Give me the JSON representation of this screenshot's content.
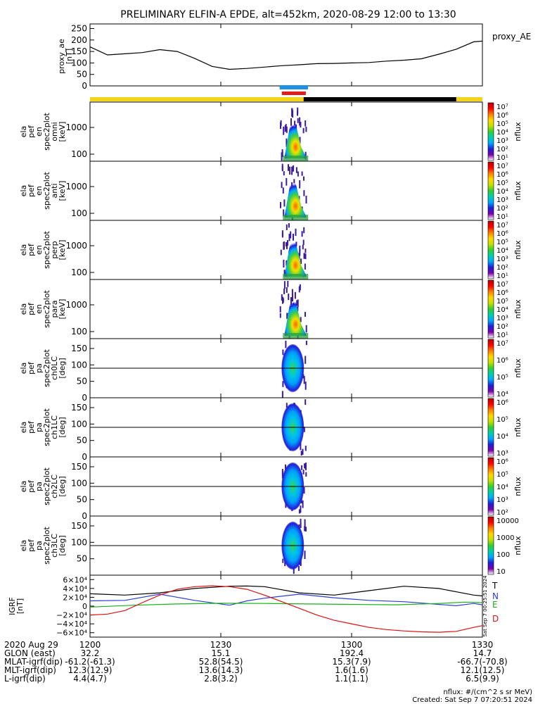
{
  "chart_data": {
    "type": "multi-panel spectrogram",
    "title": "PRELIMINARY ELFIN-A EPDE, alt=452km, 2020-08-29 12:00 to 13:30",
    "ae_panel": {
      "ylabel_lines": [
        "proxy_ae",
        "[nT]"
      ],
      "yticks": [
        "250",
        "200",
        "150",
        "100",
        "50",
        "0"
      ],
      "ytick_values": [
        250,
        200,
        150,
        100,
        50,
        0
      ],
      "ylim": [
        0,
        270
      ],
      "legend": "proxy_AE",
      "x": [
        0,
        4,
        8,
        12,
        16,
        20,
        24,
        28,
        32,
        36,
        40,
        44,
        48,
        52,
        56,
        60,
        64,
        68,
        72,
        76,
        80,
        84,
        88,
        90
      ],
      "values": [
        170,
        135,
        140,
        145,
        158,
        150,
        120,
        85,
        72,
        76,
        82,
        88,
        92,
        97,
        98,
        100,
        102,
        108,
        112,
        118,
        138,
        160,
        192,
        195
      ],
      "line_color": "#000000"
    },
    "energy_panels": [
      {
        "ylabel_lines": [
          "ela",
          "pef",
          "en",
          "spec2plot",
          "omni",
          "[keV]"
        ],
        "yticks": [
          "1000",
          "100"
        ],
        "cbar_ticks": [
          "10⁷",
          "10⁶",
          "10⁵",
          "10⁴",
          "10³",
          "10²",
          "10¹"
        ],
        "cbar_label": "nflux"
      },
      {
        "ylabel_lines": [
          "ela",
          "pef",
          "en",
          "spec2plot",
          "anti",
          "[keV]"
        ],
        "yticks": [
          "1000",
          "100"
        ],
        "cbar_ticks": [
          "10⁷",
          "10⁶",
          "10⁵",
          "10⁴",
          "10³",
          "10²",
          "10¹"
        ],
        "cbar_label": "nflux"
      },
      {
        "ylabel_lines": [
          "ela",
          "pef",
          "en",
          "spec2plot",
          "perp",
          "[keV]"
        ],
        "yticks": [
          "1000",
          "100"
        ],
        "cbar_ticks": [
          "10⁷",
          "10⁶",
          "10⁵",
          "10⁴",
          "10³",
          "10²",
          "10¹"
        ],
        "cbar_label": "nflux"
      },
      {
        "ylabel_lines": [
          "ela",
          "pef",
          "en",
          "spec2plot",
          "para",
          "[keV]"
        ],
        "yticks": [
          "1000",
          "100"
        ],
        "cbar_ticks": [
          "10⁷",
          "10⁶",
          "10⁵",
          "10⁴",
          "10³",
          "10²",
          "10¹"
        ],
        "cbar_label": "nflux"
      }
    ],
    "pa_panels": [
      {
        "ylabel_lines": [
          "ela",
          "pef",
          "pa",
          "spec2plot",
          "ch0LC",
          "[deg]"
        ],
        "yticks": [
          "150",
          "100",
          "50",
          "0"
        ],
        "cbar_ticks": [
          "10⁷",
          "10⁶",
          "10⁵",
          "10⁴"
        ],
        "cbar_label": "nflux"
      },
      {
        "ylabel_lines": [
          "ela",
          "pef",
          "pa",
          "spec2plot",
          "ch1LC",
          "[deg]"
        ],
        "yticks": [
          "150",
          "100",
          "50",
          "0"
        ],
        "cbar_ticks": [
          "10⁶",
          "10⁵",
          "10⁴",
          "10³"
        ],
        "cbar_label": "nflux"
      },
      {
        "ylabel_lines": [
          "ela",
          "pef",
          "pa",
          "spec2plot",
          "ch2LC",
          "[deg]"
        ],
        "yticks": [
          "150",
          "100",
          "50",
          "0"
        ],
        "cbar_ticks": [
          "10⁶",
          "10⁵",
          "10⁴",
          "10³",
          "10²"
        ],
        "cbar_label": "nflux"
      },
      {
        "ylabel_lines": [
          "ela",
          "pef",
          "pa",
          "spec2plot",
          "ch3LC",
          "[deg]"
        ],
        "yticks": [
          "150",
          "100",
          "50"
        ],
        "cbar_ticks": [
          "10000",
          "1000",
          "100",
          "10"
        ],
        "cbar_label": "nflux"
      }
    ],
    "igrf_panel": {
      "ylabel_lines": [
        "IGRF",
        "[nT]"
      ],
      "yticks": [
        "6×10⁴",
        "4×10⁴",
        "2×10⁴",
        "0",
        "−2×10⁴",
        "−4×10⁴",
        "−6×10⁴"
      ],
      "ytick_values": [
        60000,
        40000,
        20000,
        0,
        -20000,
        -40000,
        -60000
      ],
      "ylim": [
        -70000,
        70000
      ],
      "series": [
        {
          "name": "T",
          "color": "#000000",
          "x": [
            0,
            8,
            16,
            24,
            32,
            36,
            40,
            48,
            56,
            64,
            72,
            80,
            88,
            90
          ],
          "values": [
            28000,
            25000,
            30000,
            40000,
            45000,
            45500,
            44000,
            30000,
            25000,
            35000,
            45000,
            40000,
            25000,
            23000
          ]
        },
        {
          "name": "N",
          "color": "#2a3fdc",
          "x": [
            0,
            8,
            16,
            24,
            32,
            36,
            40,
            48,
            56,
            64,
            72,
            80,
            84,
            88,
            90
          ],
          "values": [
            12000,
            13000,
            27000,
            13000,
            2000,
            12000,
            18000,
            27000,
            19000,
            13000,
            10000,
            4000,
            1000,
            6000,
            3000
          ]
        },
        {
          "name": "E",
          "color": "#16b216",
          "x": [
            0,
            10,
            20,
            30,
            40,
            50,
            60,
            70,
            80,
            86,
            90
          ],
          "values": [
            -2000,
            2000,
            5000,
            6500,
            6000,
            5000,
            4000,
            3000,
            6000,
            9000,
            8000
          ]
        },
        {
          "name": "D",
          "color": "#e01010",
          "x": [
            0,
            4,
            8,
            12,
            16,
            20,
            24,
            28,
            32,
            36,
            40,
            44,
            48,
            52,
            56,
            60,
            64,
            68,
            72,
            76,
            80,
            84,
            88,
            90
          ],
          "values": [
            -20000,
            -18000,
            -10000,
            8000,
            25000,
            38000,
            44000,
            46000,
            44000,
            38000,
            25000,
            10000,
            -5000,
            -20000,
            -32000,
            -40000,
            -48000,
            -53000,
            -56000,
            -58000,
            -59000,
            -57000,
            -48000,
            -44000
          ]
        }
      ],
      "side_text": "Sat Sep 7 00:25:51 2024"
    },
    "xticks": [
      "1200",
      "1230",
      "1300",
      "1330"
    ],
    "xtick_minutes": [
      0,
      30,
      60,
      90
    ],
    "xlim_minutes": [
      0,
      90
    ],
    "ephemeris_rows": [
      {
        "label": "2020 Aug 29",
        "values": [
          "1200",
          "1230",
          "1300",
          "1330"
        ]
      },
      {
        "label": "GLON (east)",
        "values": [
          "32.2",
          "15.1",
          "192.4",
          "14.7"
        ]
      },
      {
        "label": "MLAT-igrf(dip)",
        "values": [
          "-61.2(-61.3)",
          "52.8(54.5)",
          "15.3(7.9)",
          "-66.7(-70.8)"
        ]
      },
      {
        "label": "MLT-igrf(dip)",
        "values": [
          "12.3(12.9)",
          "13.6(14.3)",
          "1.6(1.6)",
          "12.1(12.5)"
        ]
      },
      {
        "label": "L-igrf(dip)",
        "values": [
          "4.4(4.7)",
          "2.8(3.2)",
          "1.1(1.1)",
          "6.5(9.9)"
        ]
      }
    ],
    "footer_units": "nflux: #/(cm^2 s sr MeV)",
    "footer_created": "Created: Sat Sep  7 07:20:51 2024",
    "status_bars": [
      {
        "name": "sun-day",
        "color": "#f5d31b",
        "x_start": 0,
        "x_end": 90
      },
      {
        "name": "shadow",
        "color": "#000000",
        "x_start": 49,
        "x_end": 84
      },
      {
        "name": "science-zone-blue",
        "color": "#1e90e6",
        "x_start": 43.5,
        "x_end": 50
      },
      {
        "name": "science-zone-red",
        "color": "#e21b1b",
        "x_start": 44,
        "x_end": 49.5
      }
    ]
  }
}
